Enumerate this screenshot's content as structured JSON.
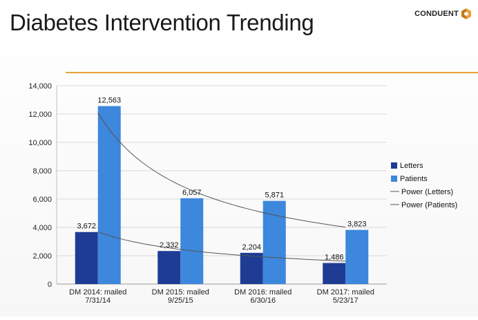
{
  "header": {
    "title": "Diabetes Intervention Trending",
    "logo_text": "CONDUENT",
    "accent_color": "#e8a13a"
  },
  "chart_data": {
    "type": "bar",
    "title": "",
    "xlabel": "",
    "ylabel": "",
    "ylim": [
      0,
      14000
    ],
    "yticks": [
      0,
      2000,
      4000,
      6000,
      8000,
      10000,
      12000,
      14000
    ],
    "ytick_labels": [
      "0",
      "2,000",
      "4,000",
      "6,000",
      "8,000",
      "10,000",
      "12,000",
      "14,000"
    ],
    "grid": true,
    "legend_position": "right",
    "categories": [
      [
        "DM 2014: mailed",
        "7/31/14"
      ],
      [
        "DM 2015: mailed",
        "9/25/15"
      ],
      [
        "DM 2016: mailed",
        "6/30/16"
      ],
      [
        "DM 2017: mailed",
        "5/23/17"
      ]
    ],
    "series": [
      {
        "name": "Letters",
        "values": [
          3672,
          2332,
          2204,
          1486
        ],
        "labels": [
          "3,672",
          "2,332",
          "2,204",
          "1,486"
        ],
        "color": "#1f3c95"
      },
      {
        "name": "Patients",
        "values": [
          12563,
          6057,
          5871,
          3823
        ],
        "labels": [
          "12,563",
          "6,057",
          "5,871",
          "3,823"
        ],
        "color": "#3d87dc"
      }
    ],
    "trendlines": [
      {
        "name": "Power (Letters)",
        "type": "power",
        "series": "Letters",
        "color": "#555555"
      },
      {
        "name": "Power (Patients)",
        "type": "power",
        "series": "Patients",
        "color": "#555555"
      }
    ]
  }
}
